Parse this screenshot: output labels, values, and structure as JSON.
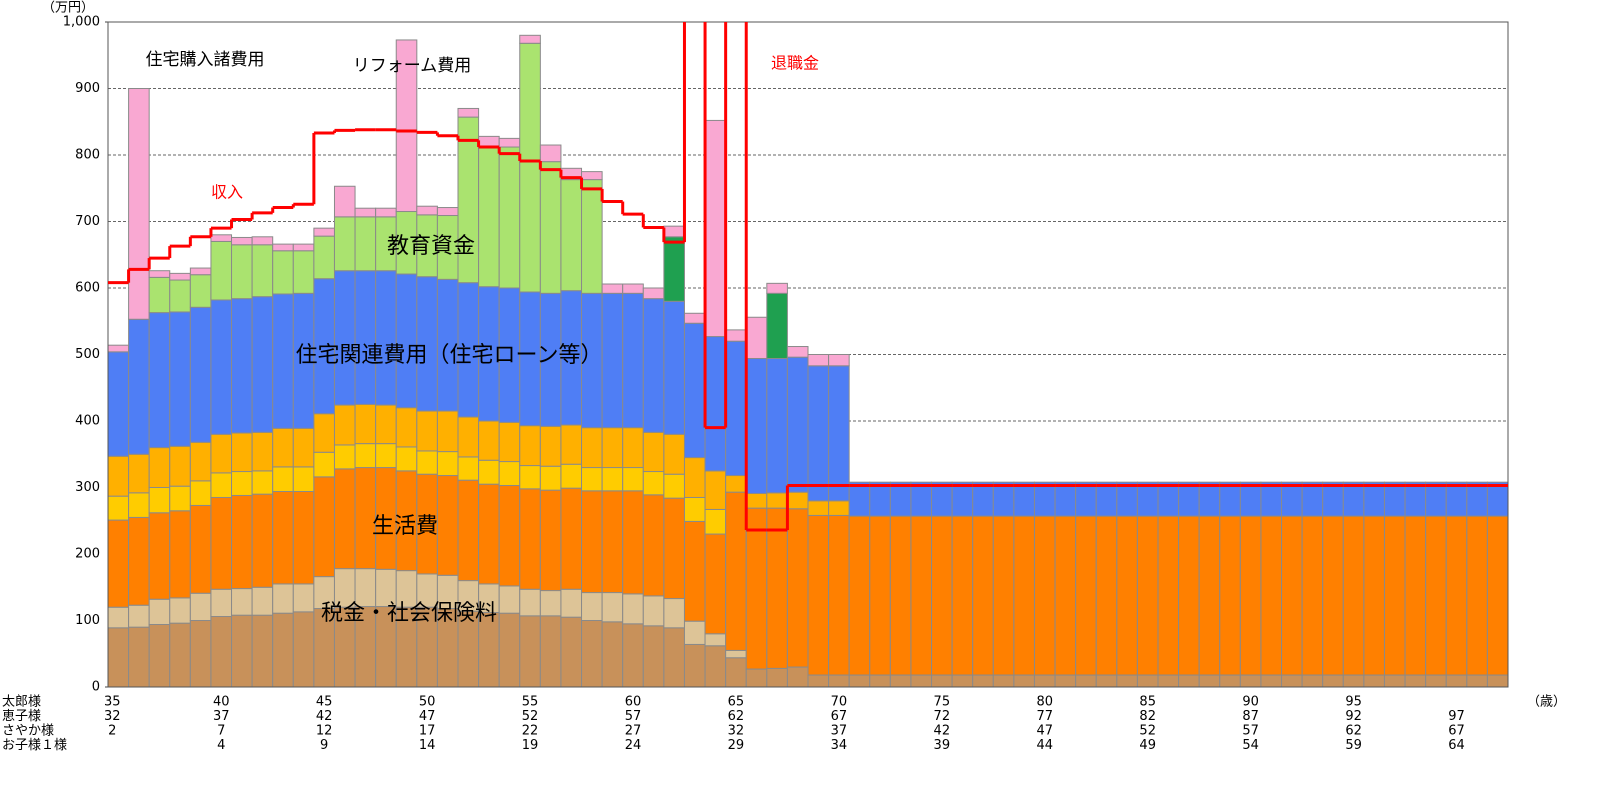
{
  "chart_data": {
    "type": "stacked-bar",
    "y_unit": "（万円）",
    "x_unit": "（歳）",
    "ylim": [
      0,
      1000
    ],
    "yticks": [
      0,
      100,
      200,
      300,
      400,
      500,
      600,
      700,
      800,
      900,
      {
        "value": 1000,
        "label": "1,000"
      }
    ],
    "grid": true,
    "x_label_rows": [
      {
        "name": "太郎様",
        "labels": [
          35,
          null,
          null,
          null,
          null,
          40,
          null,
          null,
          null,
          null,
          45,
          null,
          null,
          null,
          null,
          50,
          null,
          null,
          null,
          null,
          55,
          null,
          null,
          null,
          null,
          60,
          null,
          null,
          null,
          null,
          65,
          null,
          null,
          null,
          null,
          70,
          null,
          null,
          null,
          null,
          75,
          null,
          null,
          null,
          null,
          80,
          null,
          null,
          null,
          null,
          85,
          null,
          null,
          null,
          null,
          90,
          null,
          null,
          null,
          null,
          95,
          null,
          null,
          null,
          null,
          null,
          null,
          null
        ]
      },
      {
        "name": "恵子様",
        "labels": [
          32,
          null,
          null,
          null,
          null,
          37,
          null,
          null,
          null,
          null,
          42,
          null,
          null,
          null,
          null,
          47,
          null,
          null,
          null,
          null,
          52,
          null,
          null,
          null,
          null,
          57,
          null,
          null,
          null,
          null,
          62,
          null,
          null,
          null,
          null,
          67,
          null,
          null,
          null,
          null,
          72,
          null,
          null,
          null,
          null,
          77,
          null,
          null,
          null,
          null,
          82,
          null,
          null,
          null,
          null,
          87,
          null,
          null,
          null,
          null,
          92,
          null,
          null,
          null,
          null,
          97,
          null,
          null
        ]
      },
      {
        "name": "さやか様",
        "labels": [
          2,
          null,
          null,
          null,
          null,
          7,
          null,
          null,
          null,
          null,
          12,
          null,
          null,
          null,
          null,
          17,
          null,
          null,
          null,
          null,
          22,
          null,
          null,
          null,
          null,
          27,
          null,
          null,
          null,
          null,
          32,
          null,
          null,
          null,
          null,
          37,
          null,
          null,
          null,
          null,
          42,
          null,
          null,
          null,
          null,
          47,
          null,
          null,
          null,
          null,
          52,
          null,
          null,
          null,
          null,
          57,
          null,
          null,
          null,
          null,
          62,
          null,
          null,
          null,
          null,
          67,
          null,
          null
        ]
      },
      {
        "name": "お子様１様",
        "labels": [
          null,
          null,
          null,
          null,
          null,
          4,
          null,
          null,
          null,
          null,
          9,
          null,
          null,
          null,
          null,
          14,
          null,
          null,
          null,
          null,
          19,
          null,
          null,
          null,
          null,
          24,
          null,
          null,
          null,
          null,
          29,
          null,
          null,
          null,
          null,
          34,
          null,
          null,
          null,
          null,
          39,
          null,
          null,
          null,
          null,
          44,
          null,
          null,
          null,
          null,
          49,
          null,
          null,
          null,
          null,
          54,
          null,
          null,
          null,
          null,
          59,
          null,
          null,
          null,
          null,
          64,
          null,
          null
        ]
      }
    ],
    "series": [
      {
        "color": "#c8915a",
        "values": [
          89,
          90,
          94,
          96,
          100,
          106,
          108,
          108,
          111,
          113,
          118,
          120,
          121,
          121,
          120,
          120,
          118,
          114,
          112,
          111,
          107,
          107,
          105,
          100,
          98,
          95,
          92,
          89,
          64,
          62,
          44,
          27,
          28,
          30,
          18,
          18,
          18,
          18,
          18,
          18,
          18,
          18,
          18,
          18,
          18,
          18,
          18,
          18,
          18,
          18,
          18,
          18,
          18,
          18,
          18,
          18,
          18,
          18,
          18,
          18,
          18,
          18,
          18,
          18,
          18,
          18,
          18,
          18
        ]
      },
      {
        "color": "#ddc497",
        "values": [
          31,
          33,
          38,
          38,
          41,
          41,
          40,
          42,
          44,
          42,
          48,
          58,
          57,
          56,
          55,
          50,
          50,
          46,
          43,
          41,
          40,
          38,
          42,
          42,
          44,
          45,
          45,
          44,
          35,
          18,
          11,
          0,
          0,
          0,
          0,
          0,
          0,
          0,
          0,
          0,
          0,
          0,
          0,
          0,
          0,
          0,
          0,
          0,
          0,
          0,
          0,
          0,
          0,
          0,
          0,
          0,
          0,
          0,
          0,
          0,
          0,
          0,
          0,
          0,
          0,
          0,
          0,
          0
        ]
      },
      {
        "color": "#ff8000",
        "values": [
          131,
          132,
          130,
          131,
          132,
          138,
          140,
          140,
          139,
          139,
          150,
          150,
          152,
          153,
          150,
          150,
          150,
          151,
          150,
          151,
          151,
          151,
          152,
          153,
          153,
          155,
          152,
          151,
          150,
          150,
          238,
          242,
          241,
          238,
          240,
          240,
          239,
          239,
          239,
          239,
          239,
          239,
          239,
          239,
          239,
          239,
          239,
          239,
          239,
          239,
          239,
          239,
          239,
          239,
          239,
          239,
          239,
          239,
          239,
          239,
          239,
          239,
          239,
          239,
          239,
          239,
          239,
          239
        ]
      },
      {
        "color": "#ffcc00",
        "values": [
          36,
          37,
          38,
          37,
          37,
          37,
          36,
          35,
          37,
          37,
          37,
          36,
          36,
          36,
          36,
          35,
          36,
          35,
          36,
          36,
          35,
          36,
          36,
          35,
          35,
          35,
          35,
          36,
          36,
          37,
          0,
          0,
          0,
          0,
          0,
          0,
          0,
          0,
          0,
          0,
          0,
          0,
          0,
          0,
          0,
          0,
          0,
          0,
          0,
          0,
          0,
          0,
          0,
          0,
          0,
          0,
          0,
          0,
          0,
          0,
          0,
          0,
          0,
          0,
          0,
          0,
          0,
          0
        ]
      },
      {
        "color": "#ffb000",
        "values": [
          60,
          58,
          60,
          60,
          58,
          58,
          58,
          58,
          58,
          58,
          58,
          60,
          59,
          58,
          59,
          60,
          61,
          60,
          59,
          59,
          60,
          60,
          59,
          60,
          60,
          60,
          59,
          60,
          60,
          58,
          25,
          22,
          23,
          25,
          22,
          22,
          0,
          0,
          0,
          0,
          0,
          0,
          0,
          0,
          0,
          0,
          0,
          0,
          0,
          0,
          0,
          0,
          0,
          0,
          0,
          0,
          0,
          0,
          0,
          0,
          0,
          0,
          0,
          0,
          0,
          0,
          0,
          0
        ]
      },
      {
        "color": "#4f7ef5",
        "values": [
          157,
          203,
          203,
          202,
          203,
          202,
          202,
          204,
          202,
          203,
          203,
          202,
          201,
          202,
          201,
          202,
          198,
          202,
          202,
          202,
          201,
          200,
          202,
          202,
          202,
          202,
          201,
          200,
          202,
          202,
          202,
          203,
          202,
          203,
          203,
          203,
          51,
          51,
          51,
          51,
          51,
          51,
          51,
          51,
          51,
          51,
          51,
          51,
          51,
          51,
          51,
          51,
          51,
          51,
          51,
          51,
          51,
          51,
          51,
          51,
          51,
          51,
          51,
          51,
          51,
          51,
          51,
          51
        ]
      },
      {
        "color": "#aae36f",
        "values": [
          0,
          0,
          53,
          48,
          49,
          88,
          81,
          78,
          65,
          64,
          64,
          81,
          81,
          81,
          94,
          93,
          96,
          249,
          210,
          212,
          374,
          198,
          167,
          171,
          0,
          0,
          0,
          0,
          0,
          0,
          0,
          0,
          0,
          0,
          0,
          0,
          0,
          0,
          0,
          0,
          0,
          0,
          0,
          0,
          0,
          0,
          0,
          0,
          0,
          0,
          0,
          0,
          0,
          0,
          0,
          0,
          0,
          0,
          0,
          0,
          0,
          0,
          0,
          0,
          0,
          0,
          0,
          0
        ]
      },
      {
        "color": "#1fa050",
        "values": [
          0,
          0,
          0,
          0,
          0,
          0,
          0,
          0,
          0,
          0,
          0,
          0,
          0,
          0,
          0,
          0,
          0,
          0,
          0,
          0,
          0,
          0,
          0,
          0,
          0,
          0,
          0,
          97,
          0,
          0,
          0,
          0,
          98,
          0,
          0,
          0,
          0,
          0,
          0,
          0,
          0,
          0,
          0,
          0,
          0,
          0,
          0,
          0,
          0,
          0,
          0,
          0,
          0,
          0,
          0,
          0,
          0,
          0,
          0,
          0,
          0,
          0,
          0,
          0,
          0,
          0,
          0,
          0
        ]
      },
      {
        "color": "#f9a8d2",
        "values": [
          10,
          347,
          10,
          10,
          10,
          10,
          11,
          12,
          10,
          10,
          12,
          46,
          13,
          13,
          258,
          13,
          12,
          13,
          16,
          13,
          12,
          25,
          17,
          12,
          14,
          14,
          16,
          16,
          15,
          325,
          17,
          62,
          15,
          16,
          17,
          17,
          0,
          0,
          0,
          0,
          0,
          0,
          0,
          0,
          0,
          0,
          0,
          0,
          0,
          0,
          0,
          0,
          0,
          0,
          0,
          0,
          0,
          0,
          0,
          0,
          0,
          0,
          0,
          0,
          0,
          0,
          0,
          0
        ]
      }
    ],
    "income": {
      "color": "#ff0000",
      "values": [
        608,
        628,
        645,
        663,
        677,
        690,
        703,
        713,
        721,
        726,
        833,
        837,
        838,
        838,
        836,
        834,
        829,
        822,
        812,
        802,
        791,
        778,
        766,
        749,
        730,
        711,
        691,
        669,
        1200,
        390,
        1200,
        236,
        236,
        303,
        303,
        303,
        303,
        303,
        303,
        303,
        303,
        303,
        303,
        303,
        303,
        303,
        303,
        303,
        303,
        303,
        303,
        303,
        303,
        303,
        303,
        303,
        303,
        303,
        303,
        303,
        303,
        303,
        303,
        303,
        303,
        303,
        303,
        303
      ]
    },
    "annotations": [
      {
        "text": "住宅購入諸費用",
        "color": "#000000"
      },
      {
        "text": "リフォーム費用",
        "color": "#000000"
      },
      {
        "text": "収入",
        "color": "#ff0000"
      },
      {
        "text": "退職金",
        "color": "#ff0000"
      },
      {
        "text": "教育資金",
        "color": "#000000"
      },
      {
        "text": "住宅関連費用（住宅ローン等）",
        "color": "#000000"
      },
      {
        "text": "生活費",
        "color": "#000000"
      },
      {
        "text": "税金・社会保険料",
        "color": "#000000"
      }
    ]
  }
}
